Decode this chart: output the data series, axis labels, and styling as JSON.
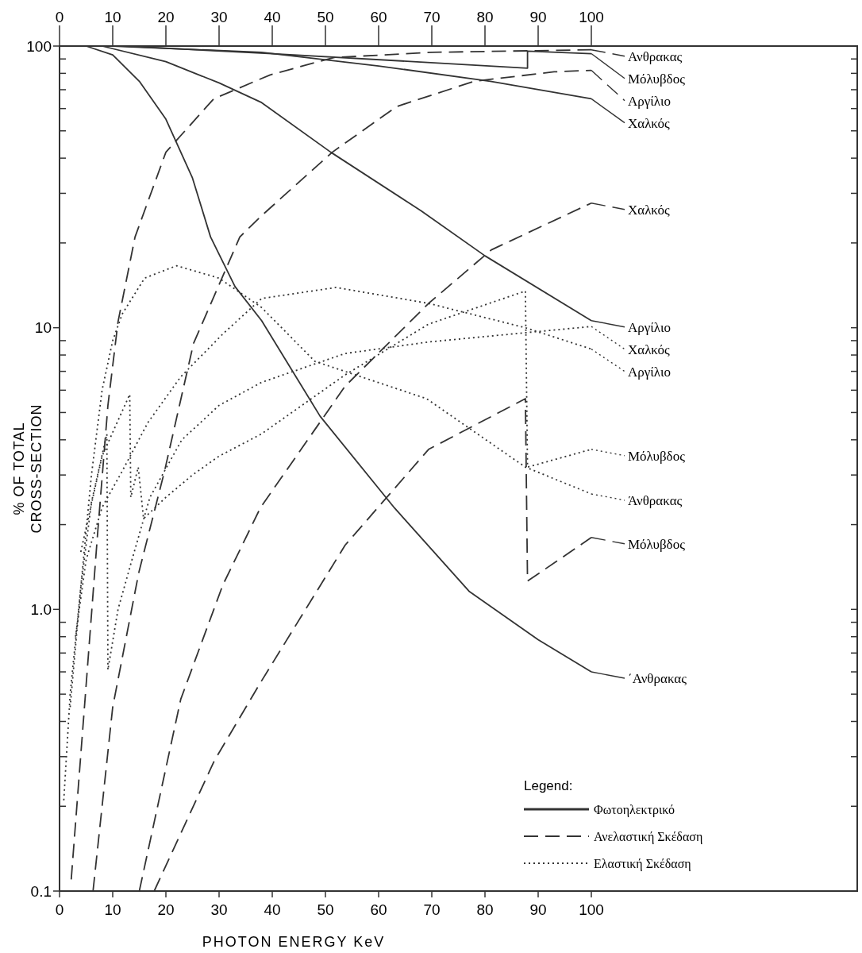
{
  "chart_data": {
    "type": "line",
    "xlabel": "PHOTON ENERGY   KeV",
    "ylabel": "% OF TOTAL\nCROSS-SECTION",
    "legend_title": "Legend:",
    "legend": "right",
    "log": "y",
    "grid": false,
    "xlim": [
      0,
      150
    ],
    "xticks": [
      0,
      10,
      20,
      30,
      40,
      50,
      60,
      70,
      80,
      90,
      100
    ],
    "x2lim": [
      0,
      150
    ],
    "x2ticks": [
      0,
      10,
      20,
      30,
      40,
      50,
      60,
      70,
      80,
      90,
      100
    ],
    "ylim": [
      0.1,
      100
    ],
    "yticks": [
      {
        "value": 0.1,
        "label": "0.1"
      },
      {
        "value": 0.2,
        "label": null
      },
      {
        "value": 0.3,
        "label": null
      },
      {
        "value": 0.4,
        "label": null
      },
      {
        "value": 0.5,
        "label": null
      },
      {
        "value": 0.6,
        "label": null
      },
      {
        "value": 0.7,
        "label": null
      },
      {
        "value": 0.8,
        "label": null
      },
      {
        "value": 0.9,
        "label": null
      },
      {
        "value": 1,
        "label": "1.0"
      },
      {
        "value": 2,
        "label": null
      },
      {
        "value": 3,
        "label": null
      },
      {
        "value": 4,
        "label": null
      },
      {
        "value": 5,
        "label": null
      },
      {
        "value": 6,
        "label": null
      },
      {
        "value": 7,
        "label": null
      },
      {
        "value": 8,
        "label": null
      },
      {
        "value": 9,
        "label": null
      },
      10,
      {
        "value": 20,
        "label": null
      },
      {
        "value": 30,
        "label": null
      },
      {
        "value": 40,
        "label": null
      },
      {
        "value": 50,
        "label": null
      },
      {
        "value": 60,
        "label": null
      },
      {
        "value": 70,
        "label": null
      },
      {
        "value": 80,
        "label": null
      },
      {
        "value": 90,
        "label": null
      },
      100
    ],
    "annotations": [
      "Φωτοηλεκτρικό",
      "Ανελαστική Σκέδαση",
      "Ελαστική Σκέδαση"
    ],
    "series": [
      {
        "name": "΄Ανθρακας",
        "color": "#333333",
        "line_style": "solid",
        "x": [
          5,
          10,
          15,
          20,
          25,
          28.4,
          33,
          38,
          49,
          63,
          77,
          90,
          100
        ],
        "values": [
          100,
          93,
          75,
          55,
          34,
          21,
          14,
          10.6,
          4.85,
          2.29,
          1.16,
          0.78,
          0.6
        ]
      },
      {
        "name": "Αργίλιο",
        "color": "#333333",
        "line_style": "solid",
        "x": [
          8,
          20,
          30,
          38,
          51,
          68,
          80,
          100
        ],
        "values": [
          100,
          88,
          74,
          63,
          42,
          26,
          18,
          10.6
        ]
      },
      {
        "name": "Χαλκός",
        "color": "#333333",
        "line_style": "solid",
        "x": [
          10,
          38,
          60,
          81,
          100
        ],
        "values": [
          100,
          95,
          85,
          75,
          65
        ]
      },
      {
        "name": "Μόλυβδος",
        "color": "#333333",
        "line_style": "solid",
        "x": [
          12,
          40,
          88,
          88,
          100
        ],
        "values": [
          100,
          94,
          83.5,
          96,
          94
        ]
      },
      {
        "name": "Ανθρακας",
        "color": "#333333",
        "line_style": "dashed",
        "x": [
          2.2,
          4.8,
          7.2,
          9.1,
          11,
          14.2,
          20,
          29,
          39.6,
          51.5,
          70,
          100
        ],
        "values": [
          0.11,
          0.48,
          1.9,
          5.3,
          10.5,
          21,
          42,
          65,
          79,
          91,
          95,
          97
        ]
      },
      {
        "name": "Αργίλιο",
        "color": "#333333",
        "line_style": "dashed",
        "x": [
          6.3,
          10,
          14.9,
          19.7,
          25.2,
          33.9,
          38,
          51.3,
          63.4,
          78,
          93,
          100
        ],
        "values": [
          0.1,
          0.45,
          1.35,
          3.07,
          8.8,
          21,
          25,
          42,
          61,
          75,
          81,
          82
        ]
      },
      {
        "name": "Χαλκός",
        "color": "#333333",
        "line_style": "dashed",
        "x": [
          15,
          22.8,
          30.7,
          37.8,
          53.7,
          69.4,
          81.2,
          100
        ],
        "values": [
          0.1,
          0.48,
          1.22,
          2.3,
          6.2,
          12.2,
          18.9,
          27.7
        ]
      },
      {
        "name": "Μόλυβδος",
        "color": "#333333",
        "line_style": "dashed",
        "x": [
          17.8,
          29.1,
          37.8,
          53.7,
          69.4,
          87.6,
          88,
          100
        ],
        "values": [
          0.1,
          0.29,
          0.55,
          1.69,
          3.7,
          5.6,
          1.26,
          1.8
        ]
      },
      {
        "name": "Άνθρακας",
        "color": "#333333",
        "line_style": "dotted",
        "x": [
          0.8,
          2,
          4,
          6,
          8,
          10,
          11.8,
          16,
          22,
          30,
          38,
          48,
          69,
          87.6,
          100
        ],
        "values": [
          0.21,
          0.5,
          1.2,
          3,
          6,
          9,
          11.2,
          15,
          16.6,
          15,
          11.8,
          7.6,
          5.6,
          3.2,
          2.57
        ]
      },
      {
        "name": "Αργίλιο",
        "color": "#333333",
        "line_style": "dotted",
        "x": [
          3,
          5,
          8,
          11.8,
          16.6,
          22.8,
          30.7,
          38,
          52,
          69.4,
          87.6,
          100
        ],
        "values": [
          0.8,
          1.5,
          2.3,
          3.1,
          4.6,
          6.7,
          9.5,
          12.7,
          13.9,
          12.2,
          10,
          8.4
        ]
      },
      {
        "name": "Χαλκός",
        "color": "#333333",
        "line_style": "dotted",
        "x": [
          2,
          4,
          6,
          8.9,
          9.1,
          11,
          13.4,
          17,
          23,
          30,
          38,
          53.7,
          69.4,
          87.6,
          100
        ],
        "values": [
          0.45,
          1.2,
          2.4,
          4.2,
          0.61,
          1,
          1.45,
          2.5,
          4,
          5.3,
          6.4,
          8.1,
          8.9,
          9.6,
          10.1
        ]
      },
      {
        "name": "Μόλυβδος",
        "color": "#333333",
        "line_style": "dotted",
        "x": [
          4,
          8,
          13.2,
          13.4,
          14.8,
          15.8,
          20,
          25,
          30,
          38,
          53.7,
          69.4,
          87.6,
          88,
          100
        ],
        "values": [
          1.6,
          3.5,
          5.8,
          2.5,
          3.2,
          2.1,
          2.5,
          3,
          3.5,
          4.2,
          6.8,
          10.3,
          13.5,
          3.2,
          3.7
        ]
      }
    ]
  }
}
